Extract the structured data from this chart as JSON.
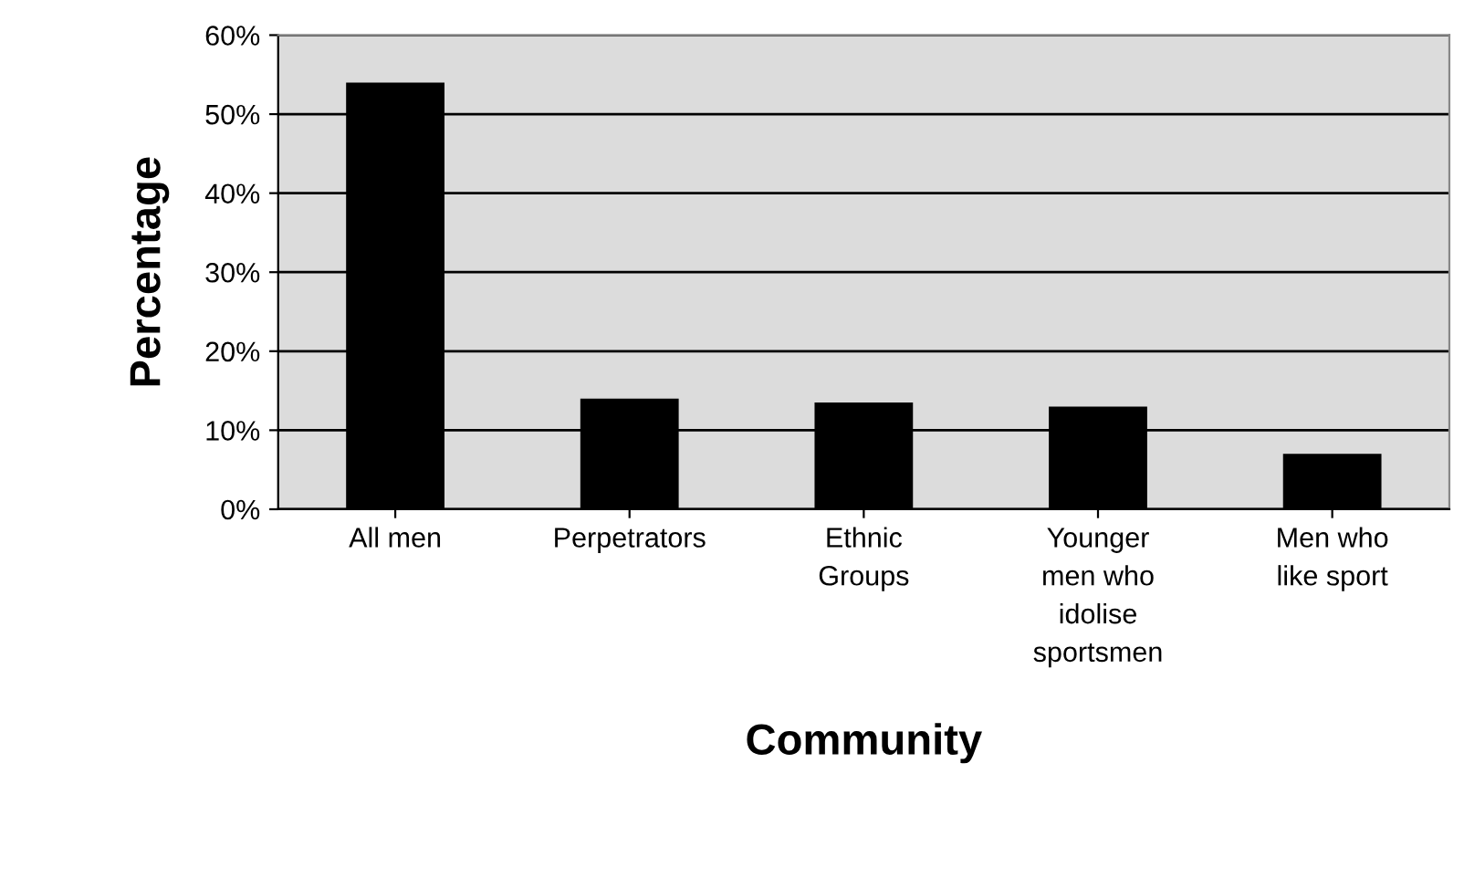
{
  "chart_data": {
    "type": "bar",
    "xlabel": "Community",
    "ylabel": "Percentage",
    "categories": [
      "All men",
      "Perpetrators",
      "Ethnic\nGroups",
      "Younger\nmen who\nidolise\nsportsmen",
      "Men who\nlike sport"
    ],
    "values": [
      54,
      14,
      13.5,
      13,
      7
    ],
    "color": "#000000",
    "ylim": [
      0,
      60
    ],
    "yticks": [
      {
        "value": 0,
        "label": "0%"
      },
      {
        "value": 10,
        "label": "10%"
      },
      {
        "value": 20,
        "label": "20%"
      },
      {
        "value": 30,
        "label": "30%"
      },
      {
        "value": 40,
        "label": "40%"
      },
      {
        "value": 50,
        "label": "50%"
      },
      {
        "value": 60,
        "label": "60%"
      }
    ],
    "grid": "y",
    "legend": false
  }
}
